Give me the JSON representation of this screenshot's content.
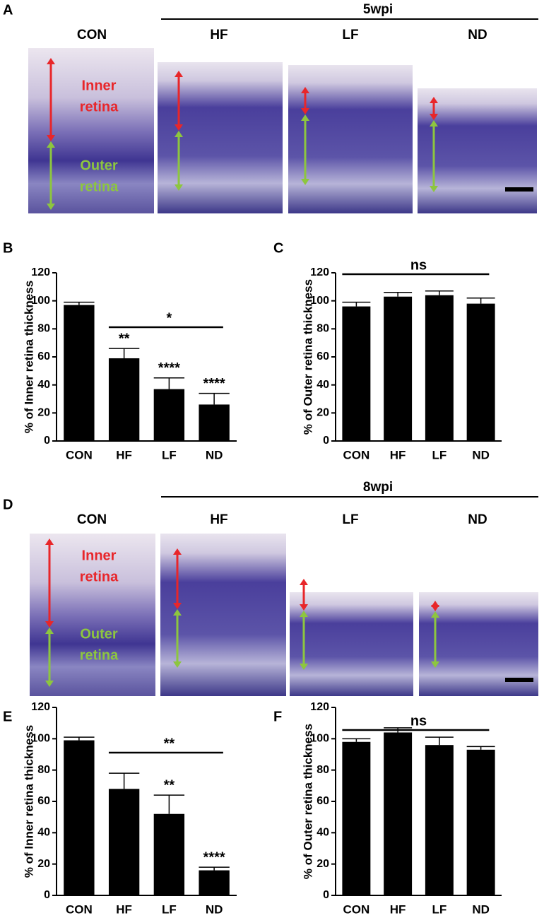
{
  "figure_panels": [
    {
      "label": "A",
      "timepoint": "5wpi",
      "conditions": [
        "CON",
        "HF",
        "LF",
        "ND"
      ],
      "inner_label": [
        "Inner",
        "retina"
      ],
      "outer_label": [
        "Outer",
        "retina"
      ]
    },
    {
      "label": "D",
      "timepoint": "8wpi",
      "conditions": [
        "CON",
        "HF",
        "LF",
        "ND"
      ],
      "inner_label": [
        "Inner",
        "retina"
      ],
      "outer_label": [
        "Outer",
        "retina"
      ]
    }
  ],
  "chart_data": [
    {
      "type": "bar",
      "panel": "B",
      "ylabel": "% of Inner retina thickness",
      "categories": [
        "CON",
        "HF",
        "LF",
        "ND"
      ],
      "values": [
        97,
        59,
        37,
        26
      ],
      "errors": [
        2,
        7,
        8,
        8
      ],
      "color": "#000000",
      "ylim": [
        0,
        120
      ],
      "yticks": [
        0,
        20,
        40,
        60,
        80,
        100,
        120
      ],
      "significance": [
        null,
        "**",
        "****",
        "****"
      ],
      "bracket": {
        "text": "*",
        "from": "HF",
        "to": "ND"
      }
    },
    {
      "type": "bar",
      "panel": "C",
      "ylabel": "% of Outer retina thickness",
      "categories": [
        "CON",
        "HF",
        "LF",
        "ND"
      ],
      "values": [
        96,
        103,
        104,
        98
      ],
      "errors": [
        3,
        3,
        3,
        4
      ],
      "color": "#000000",
      "ylim": [
        0,
        120
      ],
      "yticks": [
        0,
        20,
        40,
        60,
        80,
        100,
        120
      ],
      "significance": [
        null,
        null,
        null,
        null
      ],
      "bracket": {
        "text": "ns",
        "from": "CON",
        "to": "ND"
      }
    },
    {
      "type": "bar",
      "panel": "E",
      "ylabel": "% of Inner retina thickness",
      "categories": [
        "CON",
        "HF",
        "LF",
        "ND"
      ],
      "values": [
        99,
        68,
        52,
        16
      ],
      "errors": [
        2,
        10,
        12,
        2
      ],
      "color": "#000000",
      "ylim": [
        0,
        120
      ],
      "yticks": [
        0,
        20,
        40,
        60,
        80,
        100,
        120
      ],
      "significance": [
        null,
        null,
        "**",
        "****"
      ],
      "bracket": {
        "text": "**",
        "from": "HF",
        "to": "ND"
      }
    },
    {
      "type": "bar",
      "panel": "F",
      "ylabel": "% of Outer retina thickness",
      "categories": [
        "CON",
        "HF",
        "LF",
        "ND"
      ],
      "values": [
        98,
        104,
        96,
        93
      ],
      "errors": [
        2,
        3,
        5,
        2
      ],
      "color": "#000000",
      "ylim": [
        0,
        120
      ],
      "yticks": [
        0,
        20,
        40,
        60,
        80,
        100,
        120
      ],
      "significance": [
        null,
        null,
        null,
        null
      ],
      "bracket": {
        "text": "ns",
        "from": "CON",
        "to": "ND"
      }
    }
  ]
}
